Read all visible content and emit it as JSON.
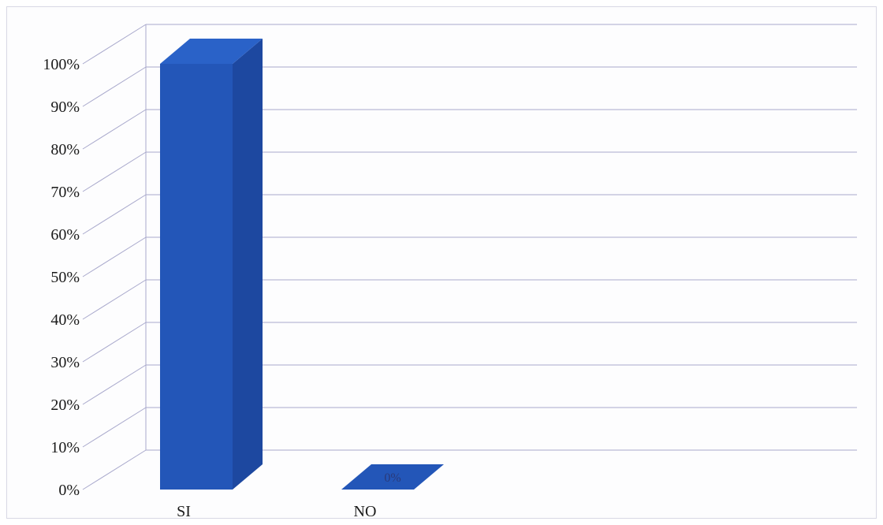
{
  "chart_data": {
    "type": "bar",
    "style": "3d-column",
    "categories": [
      "SI",
      "NO"
    ],
    "values": [
      100,
      0
    ],
    "data_labels": [
      "",
      "0%"
    ],
    "y_tick_labels": [
      "0%",
      "10%",
      "20%",
      "30%",
      "40%",
      "50%",
      "60%",
      "70%",
      "80%",
      "90%",
      "100%"
    ],
    "ylim": [
      0,
      100
    ],
    "grid": true,
    "legend": "none",
    "title": "",
    "xlabel": "",
    "ylabel": ""
  },
  "colors": {
    "bar_front": "#2356b8",
    "bar_side": "#1d48a0",
    "bar_top": "#2a62c8",
    "grid": "#a9a9cc",
    "text": "#1a1a1a"
  }
}
